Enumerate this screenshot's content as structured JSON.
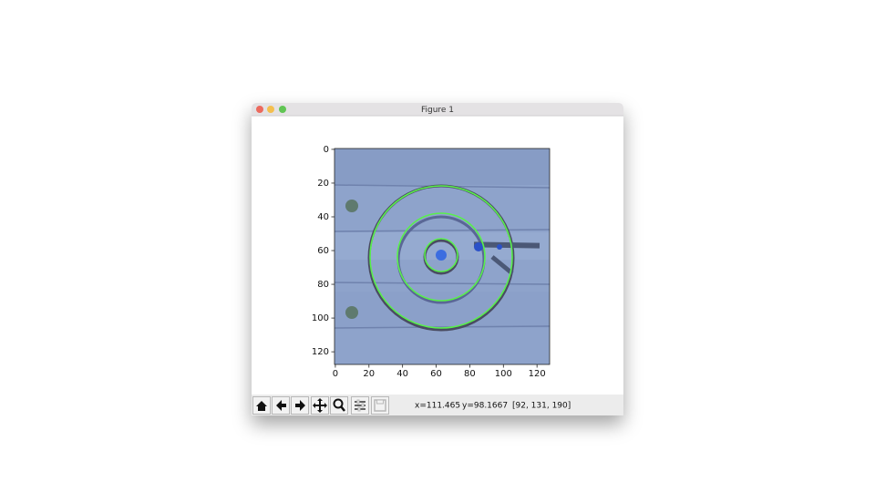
{
  "window": {
    "title": "Figure 1"
  },
  "axes": {
    "xlim": [
      -0.5,
      127.5
    ],
    "ylim": [
      127.5,
      -0.5
    ],
    "xticks": [
      0,
      20,
      40,
      60,
      80,
      100,
      120
    ],
    "yticks": [
      0,
      20,
      40,
      60,
      80,
      100,
      120
    ]
  },
  "status": {
    "x": "x=111.465",
    "y": "y=98.1667",
    "pixel": "[92, 131, 190]"
  }
}
